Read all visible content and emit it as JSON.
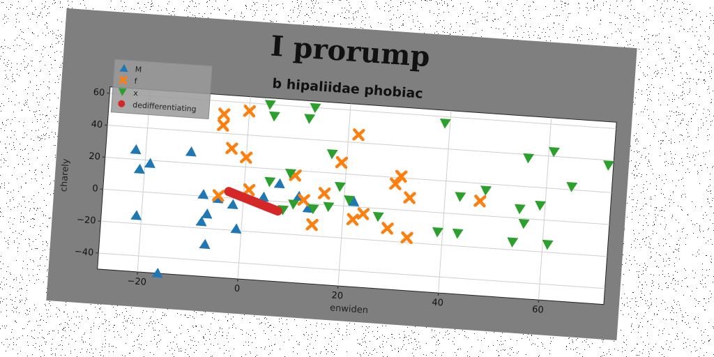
{
  "chart_data": {
    "type": "scatter",
    "title": "I prorump",
    "subtitle": "b hipaliidae phobiac",
    "xlabel": "enwiden",
    "ylabel": "charely",
    "xlim": [
      -28,
      73
    ],
    "ylim": [
      -50,
      64
    ],
    "xticks": [
      -20,
      0,
      20,
      40,
      60
    ],
    "yticks": [
      -40,
      -20,
      0,
      20,
      40,
      60
    ],
    "grid": true,
    "legend_position": "top-left",
    "series": [
      {
        "name": "M",
        "marker": "triangle-up",
        "color": "#1f77b4",
        "points": [
          [
            -22,
            26
          ],
          [
            -21,
            14
          ],
          [
            -19,
            18
          ],
          [
            -11,
            27
          ],
          [
            -21,
            -15
          ],
          [
            -8,
            1
          ],
          [
            -5,
            -1
          ],
          [
            -2,
            -4
          ],
          [
            -7,
            -11
          ],
          [
            -8,
            -16
          ],
          [
            -7,
            -30
          ],
          [
            -1,
            -19
          ],
          [
            4,
            2
          ],
          [
            7,
            11
          ],
          [
            11,
            4
          ],
          [
            13,
            -3
          ],
          [
            22,
            3
          ],
          [
            -16,
            -50
          ]
        ]
      },
      {
        "name": "f",
        "marker": "x",
        "color": "#ff7f0e",
        "points": [
          [
            -5,
            52
          ],
          [
            -5,
            45
          ],
          [
            0,
            55
          ],
          [
            -3,
            31
          ],
          [
            0,
            26
          ],
          [
            1,
            6
          ],
          [
            -5,
            1
          ],
          [
            10,
            17
          ],
          [
            12,
            2
          ],
          [
            14,
            -13
          ],
          [
            16,
            7
          ],
          [
            19,
            27
          ],
          [
            22,
            45
          ],
          [
            22,
            -8
          ],
          [
            24,
            -4
          ],
          [
            29,
            -12
          ],
          [
            30,
            16
          ],
          [
            31,
            21
          ],
          [
            33,
            8
          ],
          [
            33,
            -17
          ],
          [
            47,
            9
          ]
        ]
      },
      {
        "name": "x",
        "marker": "triangle-down",
        "color": "#2ca02c",
        "points": [
          [
            4,
            60
          ],
          [
            5,
            53
          ],
          [
            12,
            53
          ],
          [
            13,
            60
          ],
          [
            17,
            32
          ],
          [
            5,
            12
          ],
          [
            9,
            18
          ],
          [
            10,
            -1
          ],
          [
            8,
            -5
          ],
          [
            14,
            -3
          ],
          [
            17,
            -1
          ],
          [
            19,
            12
          ],
          [
            21,
            4
          ],
          [
            27,
            -5
          ],
          [
            39,
            56
          ],
          [
            39,
            -12
          ],
          [
            43,
            -12
          ],
          [
            43,
            11
          ],
          [
            48,
            16
          ],
          [
            56,
            38
          ],
          [
            54,
            -15
          ],
          [
            55,
            6
          ],
          [
            56,
            -3
          ],
          [
            59,
            9
          ],
          [
            61,
            43
          ],
          [
            61,
            -15
          ],
          [
            65,
            22
          ],
          [
            72,
            37
          ]
        ]
      },
      {
        "name": "dedifferentiating",
        "marker": "line",
        "color": "#d62728",
        "points": [
          [
            -3,
            4
          ],
          [
            -1,
            2
          ],
          [
            1,
            0
          ],
          [
            3,
            -2
          ],
          [
            5,
            -4
          ],
          [
            7,
            -6
          ]
        ]
      }
    ]
  }
}
